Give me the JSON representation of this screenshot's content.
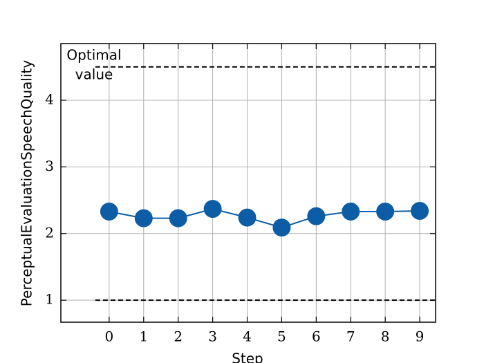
{
  "chart_data": {
    "type": "line",
    "x_label": "Step",
    "y_label": "PerceptualEvaluationSpeechQuality",
    "x": [
      0,
      1,
      2,
      3,
      4,
      5,
      6,
      7,
      8,
      9
    ],
    "series": [
      {
        "color": "#0C5DA5",
        "values": [
          2.33,
          2.23,
          2.23,
          2.37,
          2.24,
          2.09,
          2.26,
          2.33,
          2.33,
          2.34
        ]
      }
    ],
    "reference_lines": [
      {
        "value": 4.5,
        "xstart": -0.4
      },
      {
        "value": 1,
        "xstart": -0.4
      }
    ],
    "annotation": [
      "Optimal",
      "value"
    ],
    "xlim": [
      -1.4,
      9.46
    ],
    "ylim": [
      0.67,
      4.85
    ],
    "xticks": [
      0,
      1,
      2,
      3,
      4,
      5,
      6,
      7,
      8,
      9
    ],
    "yticks": [
      1,
      2,
      3,
      4
    ],
    "grid": true
  }
}
